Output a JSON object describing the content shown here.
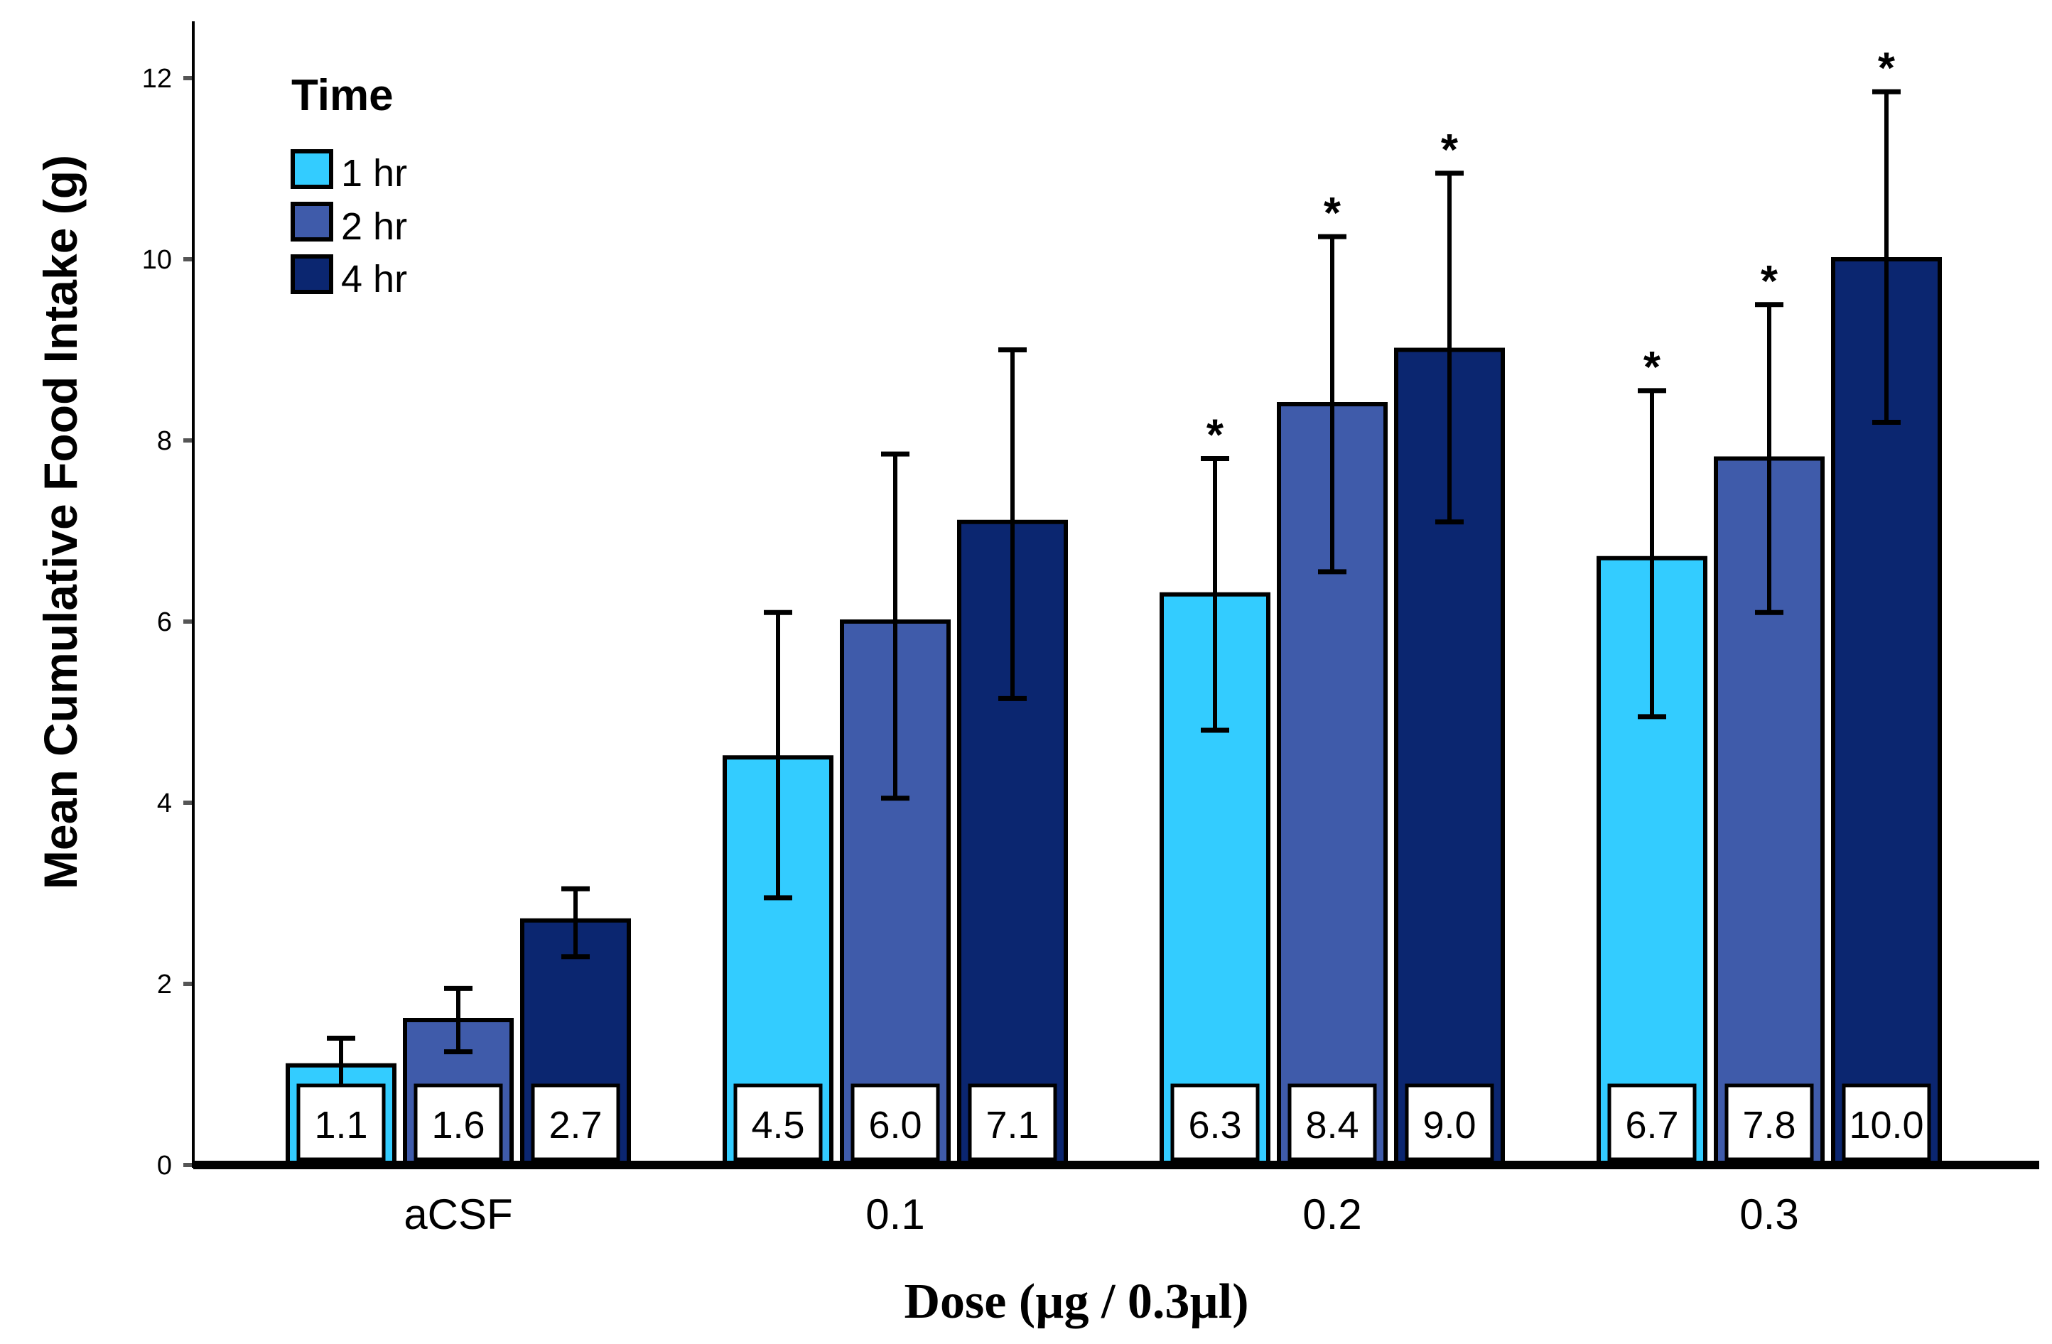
{
  "colors": {
    "series_1hr": "#33CCFF",
    "series_2hr": "#3F5BAA",
    "series_4hr": "#0B2670",
    "axis": "#000000"
  },
  "chart_data": {
    "type": "bar",
    "title": "",
    "xlabel": "Dose (µg / 0.3µl)",
    "ylabel": "Mean Cumulative Food Intake (g)",
    "ylim": [
      0,
      12.6
    ],
    "yticks": [
      0,
      2,
      4,
      6,
      8,
      10,
      12
    ],
    "categories": [
      "aCSF",
      "0.1",
      "0.2",
      "0.3"
    ],
    "legend_title": "Time",
    "legend_position": "top-left",
    "series": [
      {
        "name": "1 hr",
        "values": [
          1.1,
          4.5,
          6.3,
          6.7
        ],
        "labels": [
          "1.1",
          "4.5",
          "6.3",
          "6.7"
        ],
        "error_low": [
          0.75,
          2.95,
          4.8,
          4.95
        ],
        "error_high": [
          1.4,
          6.1,
          7.8,
          8.55
        ],
        "significant": [
          false,
          false,
          true,
          true
        ]
      },
      {
        "name": "2 hr",
        "values": [
          1.6,
          6.0,
          8.4,
          7.8
        ],
        "labels": [
          "1.6",
          "6.0",
          "8.4",
          "7.8"
        ],
        "error_low": [
          1.25,
          4.05,
          6.55,
          6.1
        ],
        "error_high": [
          1.95,
          7.85,
          10.25,
          9.5
        ],
        "significant": [
          false,
          false,
          true,
          true
        ]
      },
      {
        "name": "4 hr",
        "values": [
          2.7,
          7.1,
          9.0,
          10.0
        ],
        "labels": [
          "2.7",
          "7.1",
          "9.0",
          "10.0"
        ],
        "error_low": [
          2.3,
          5.15,
          7.1,
          8.2
        ],
        "error_high": [
          3.05,
          9.0,
          10.95,
          11.85
        ],
        "significant": [
          false,
          false,
          true,
          true
        ]
      }
    ],
    "significance_marker": "*"
  }
}
